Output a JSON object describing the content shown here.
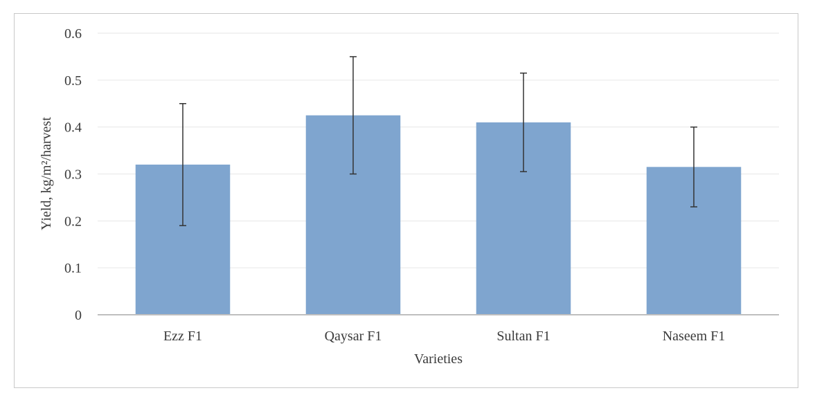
{
  "chart_data": {
    "type": "bar",
    "categories": [
      "Ezz F1",
      "Qaysar F1",
      "Sultan F1",
      "Naseem F1"
    ],
    "values": [
      0.32,
      0.425,
      0.41,
      0.315
    ],
    "error_low": [
      0.19,
      0.3,
      0.305,
      0.23
    ],
    "error_high": [
      0.45,
      0.55,
      0.515,
      0.4
    ],
    "xlabel": "Varieties",
    "ylabel": "Yield, kg/m²/harvest",
    "ylim": [
      0,
      0.6
    ],
    "yticks": [
      "0",
      "0.1",
      "0.2",
      "0.3",
      "0.4",
      "0.5",
      "0.6"
    ],
    "grid": true,
    "bar_color": "#7fa5cf",
    "error_color": "#333333"
  }
}
